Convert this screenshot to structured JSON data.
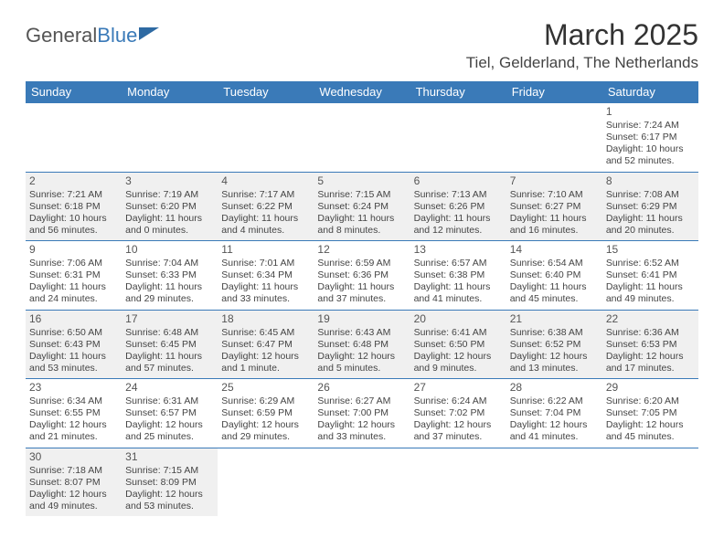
{
  "logo": {
    "text1": "General",
    "text2": "Blue"
  },
  "title": "March 2025",
  "location": "Tiel, Gelderland, The Netherlands",
  "colors": {
    "header_bg": "#3a7ab8",
    "header_fg": "#ffffff",
    "row_alt": "#f0f0f0",
    "border": "#3a7ab8",
    "text": "#444444"
  },
  "day_headers": [
    "Sunday",
    "Monday",
    "Tuesday",
    "Wednesday",
    "Thursday",
    "Friday",
    "Saturday"
  ],
  "weeks": [
    [
      null,
      null,
      null,
      null,
      null,
      null,
      {
        "n": "1",
        "sr": "Sunrise: 7:24 AM",
        "ss": "Sunset: 6:17 PM",
        "dl1": "Daylight: 10 hours",
        "dl2": "and 52 minutes."
      }
    ],
    [
      {
        "n": "2",
        "sr": "Sunrise: 7:21 AM",
        "ss": "Sunset: 6:18 PM",
        "dl1": "Daylight: 10 hours",
        "dl2": "and 56 minutes."
      },
      {
        "n": "3",
        "sr": "Sunrise: 7:19 AM",
        "ss": "Sunset: 6:20 PM",
        "dl1": "Daylight: 11 hours",
        "dl2": "and 0 minutes."
      },
      {
        "n": "4",
        "sr": "Sunrise: 7:17 AM",
        "ss": "Sunset: 6:22 PM",
        "dl1": "Daylight: 11 hours",
        "dl2": "and 4 minutes."
      },
      {
        "n": "5",
        "sr": "Sunrise: 7:15 AM",
        "ss": "Sunset: 6:24 PM",
        "dl1": "Daylight: 11 hours",
        "dl2": "and 8 minutes."
      },
      {
        "n": "6",
        "sr": "Sunrise: 7:13 AM",
        "ss": "Sunset: 6:26 PM",
        "dl1": "Daylight: 11 hours",
        "dl2": "and 12 minutes."
      },
      {
        "n": "7",
        "sr": "Sunrise: 7:10 AM",
        "ss": "Sunset: 6:27 PM",
        "dl1": "Daylight: 11 hours",
        "dl2": "and 16 minutes."
      },
      {
        "n": "8",
        "sr": "Sunrise: 7:08 AM",
        "ss": "Sunset: 6:29 PM",
        "dl1": "Daylight: 11 hours",
        "dl2": "and 20 minutes."
      }
    ],
    [
      {
        "n": "9",
        "sr": "Sunrise: 7:06 AM",
        "ss": "Sunset: 6:31 PM",
        "dl1": "Daylight: 11 hours",
        "dl2": "and 24 minutes."
      },
      {
        "n": "10",
        "sr": "Sunrise: 7:04 AM",
        "ss": "Sunset: 6:33 PM",
        "dl1": "Daylight: 11 hours",
        "dl2": "and 29 minutes."
      },
      {
        "n": "11",
        "sr": "Sunrise: 7:01 AM",
        "ss": "Sunset: 6:34 PM",
        "dl1": "Daylight: 11 hours",
        "dl2": "and 33 minutes."
      },
      {
        "n": "12",
        "sr": "Sunrise: 6:59 AM",
        "ss": "Sunset: 6:36 PM",
        "dl1": "Daylight: 11 hours",
        "dl2": "and 37 minutes."
      },
      {
        "n": "13",
        "sr": "Sunrise: 6:57 AM",
        "ss": "Sunset: 6:38 PM",
        "dl1": "Daylight: 11 hours",
        "dl2": "and 41 minutes."
      },
      {
        "n": "14",
        "sr": "Sunrise: 6:54 AM",
        "ss": "Sunset: 6:40 PM",
        "dl1": "Daylight: 11 hours",
        "dl2": "and 45 minutes."
      },
      {
        "n": "15",
        "sr": "Sunrise: 6:52 AM",
        "ss": "Sunset: 6:41 PM",
        "dl1": "Daylight: 11 hours",
        "dl2": "and 49 minutes."
      }
    ],
    [
      {
        "n": "16",
        "sr": "Sunrise: 6:50 AM",
        "ss": "Sunset: 6:43 PM",
        "dl1": "Daylight: 11 hours",
        "dl2": "and 53 minutes."
      },
      {
        "n": "17",
        "sr": "Sunrise: 6:48 AM",
        "ss": "Sunset: 6:45 PM",
        "dl1": "Daylight: 11 hours",
        "dl2": "and 57 minutes."
      },
      {
        "n": "18",
        "sr": "Sunrise: 6:45 AM",
        "ss": "Sunset: 6:47 PM",
        "dl1": "Daylight: 12 hours",
        "dl2": "and 1 minute."
      },
      {
        "n": "19",
        "sr": "Sunrise: 6:43 AM",
        "ss": "Sunset: 6:48 PM",
        "dl1": "Daylight: 12 hours",
        "dl2": "and 5 minutes."
      },
      {
        "n": "20",
        "sr": "Sunrise: 6:41 AM",
        "ss": "Sunset: 6:50 PM",
        "dl1": "Daylight: 12 hours",
        "dl2": "and 9 minutes."
      },
      {
        "n": "21",
        "sr": "Sunrise: 6:38 AM",
        "ss": "Sunset: 6:52 PM",
        "dl1": "Daylight: 12 hours",
        "dl2": "and 13 minutes."
      },
      {
        "n": "22",
        "sr": "Sunrise: 6:36 AM",
        "ss": "Sunset: 6:53 PM",
        "dl1": "Daylight: 12 hours",
        "dl2": "and 17 minutes."
      }
    ],
    [
      {
        "n": "23",
        "sr": "Sunrise: 6:34 AM",
        "ss": "Sunset: 6:55 PM",
        "dl1": "Daylight: 12 hours",
        "dl2": "and 21 minutes."
      },
      {
        "n": "24",
        "sr": "Sunrise: 6:31 AM",
        "ss": "Sunset: 6:57 PM",
        "dl1": "Daylight: 12 hours",
        "dl2": "and 25 minutes."
      },
      {
        "n": "25",
        "sr": "Sunrise: 6:29 AM",
        "ss": "Sunset: 6:59 PM",
        "dl1": "Daylight: 12 hours",
        "dl2": "and 29 minutes."
      },
      {
        "n": "26",
        "sr": "Sunrise: 6:27 AM",
        "ss": "Sunset: 7:00 PM",
        "dl1": "Daylight: 12 hours",
        "dl2": "and 33 minutes."
      },
      {
        "n": "27",
        "sr": "Sunrise: 6:24 AM",
        "ss": "Sunset: 7:02 PM",
        "dl1": "Daylight: 12 hours",
        "dl2": "and 37 minutes."
      },
      {
        "n": "28",
        "sr": "Sunrise: 6:22 AM",
        "ss": "Sunset: 7:04 PM",
        "dl1": "Daylight: 12 hours",
        "dl2": "and 41 minutes."
      },
      {
        "n": "29",
        "sr": "Sunrise: 6:20 AM",
        "ss": "Sunset: 7:05 PM",
        "dl1": "Daylight: 12 hours",
        "dl2": "and 45 minutes."
      }
    ],
    [
      {
        "n": "30",
        "sr": "Sunrise: 7:18 AM",
        "ss": "Sunset: 8:07 PM",
        "dl1": "Daylight: 12 hours",
        "dl2": "and 49 minutes."
      },
      {
        "n": "31",
        "sr": "Sunrise: 7:15 AM",
        "ss": "Sunset: 8:09 PM",
        "dl1": "Daylight: 12 hours",
        "dl2": "and 53 minutes."
      },
      null,
      null,
      null,
      null,
      null
    ]
  ]
}
